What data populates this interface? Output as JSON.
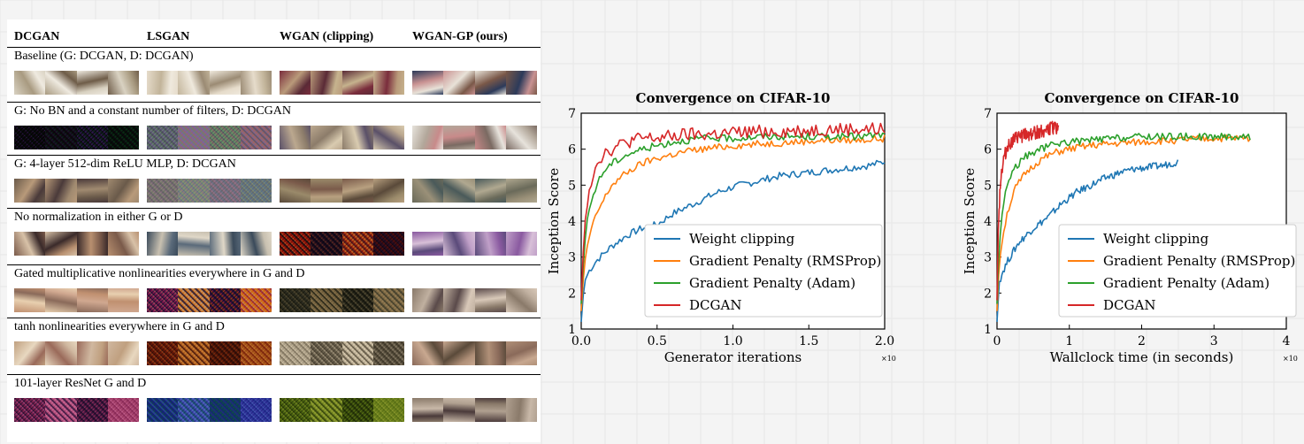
{
  "table": {
    "columns": [
      "DCGAN",
      "LSGAN",
      "WGAN (clipping)",
      "WGAN-GP (ours)"
    ],
    "rows": [
      {
        "label": "Baseline (G: DCGAN, D: DCGAN)",
        "strips": [
          {
            "palette": [
              "#d9d2c2",
              "#a89a80",
              "#efeae0",
              "#6e5c48"
            ],
            "noise": false
          },
          {
            "palette": [
              "#e6dccb",
              "#c2b49a",
              "#efe9dd",
              "#9b8b74"
            ],
            "noise": false
          },
          {
            "palette": [
              "#7a2d3c",
              "#b99a7a",
              "#5a2a36",
              "#c6b38e"
            ],
            "noise": false
          },
          {
            "palette": [
              "#2c3a5a",
              "#c99292",
              "#e8e2d8",
              "#7a5848"
            ],
            "noise": false
          }
        ]
      },
      {
        "label": "G: No BN and a constant number of filters, D: DCGAN",
        "strips": [
          {
            "palette": [
              "#1b2a1e",
              "#3a1e3a",
              "#6b4a8a",
              "#2e6a44"
            ],
            "noise": true
          },
          {
            "palette": [
              "#8a8a9a",
              "#b0a0c8",
              "#a0c0a0",
              "#c8a0a0"
            ],
            "noise": true
          },
          {
            "palette": [
              "#5a5068",
              "#bba88f",
              "#8c7c6a",
              "#d9cbb0"
            ],
            "noise": false
          },
          {
            "palette": [
              "#e7e3dc",
              "#b2a79a",
              "#c88a8a",
              "#7a6a62"
            ],
            "noise": false
          }
        ]
      },
      {
        "label": "G: 4-layer 512-dim ReLU MLP, D: DCGAN",
        "strips": [
          {
            "palette": [
              "#6a5a4a",
              "#b89a7a",
              "#4a3a3a",
              "#a08a70"
            ],
            "noise": false
          },
          {
            "palette": [
              "#a0a0a0",
              "#b8c0a8",
              "#c0a8b8",
              "#98a8b8"
            ],
            "noise": true
          },
          {
            "palette": [
              "#5a4a3a",
              "#9a8a6a",
              "#7a5a4a",
              "#b8a080"
            ],
            "noise": false
          },
          {
            "palette": [
              "#6a6a5a",
              "#9a9078",
              "#4a5a5a",
              "#b0a890"
            ],
            "noise": false
          }
        ]
      },
      {
        "label": "No normalization in either G or D",
        "strips": [
          {
            "palette": [
              "#7a5a4a",
              "#d8c2a8",
              "#3a2a2a",
              "#b89070"
            ],
            "noise": false
          },
          {
            "palette": [
              "#3a4a5a",
              "#c8c0b0",
              "#5a6a7a",
              "#e0d8c8"
            ],
            "noise": false
          },
          {
            "palette": [
              "#b83a2a",
              "#3a2a4a",
              "#d8a060",
              "#6a3a5a"
            ],
            "noise": true
          },
          {
            "palette": [
              "#8a5aa0",
              "#d8c0d8",
              "#5a4a7a",
              "#c0a0c8"
            ],
            "noise": false
          }
        ]
      },
      {
        "label": "Gated multiplicative nonlinearities everywhere in G and D",
        "strips": [
          {
            "palette": [
              "#c09070",
              "#e8d0b0",
              "#8a6a5a",
              "#d0a890"
            ],
            "noise": false
          },
          {
            "palette": [
              "#b04a8a",
              "#e0c0a0",
              "#4a3a6a",
              "#e8a040"
            ],
            "noise": true
          },
          {
            "palette": [
              "#6a6a5a",
              "#a89a7a",
              "#4a4a3a",
              "#c0b090"
            ],
            "noise": true
          },
          {
            "palette": [
              "#8a7a6a",
              "#c0b0a0",
              "#5a4a4a",
              "#d8c8b8"
            ],
            "noise": false
          }
        ]
      },
      {
        "label": "tanh nonlinearities everywhere in G and D",
        "strips": [
          {
            "palette": [
              "#c0a080",
              "#e8d8c0",
              "#9a6a5a",
              "#d0b8a0"
            ],
            "noise": false
          },
          {
            "palette": [
              "#a04a2a",
              "#e0b070",
              "#6a3a2a",
              "#c88a4a"
            ],
            "noise": true
          },
          {
            "palette": [
              "#d0c8b8",
              "#a09888",
              "#e8e0d0",
              "#807868"
            ],
            "noise": true
          },
          {
            "palette": [
              "#8a6a5a",
              "#c8a890",
              "#5a4a3a",
              "#b09078"
            ],
            "noise": false
          }
        ]
      },
      {
        "label": "101-layer ResNet G and D",
        "strips": [
          {
            "palette": [
              "#b05a8a",
              "#e0a0c0",
              "#5a3a6a",
              "#c87aa0"
            ],
            "noise": true
          },
          {
            "palette": [
              "#4a5ab0",
              "#8aa0d8",
              "#3a8a8a",
              "#6a6ac0"
            ],
            "noise": true
          },
          {
            "palette": [
              "#8aa040",
              "#c0c870",
              "#5a6a2a",
              "#a0b050"
            ],
            "noise": true
          },
          {
            "palette": [
              "#8a7a6a",
              "#c8b8a8",
              "#4a3a3a",
              "#b0a090"
            ],
            "noise": false
          }
        ]
      }
    ]
  },
  "chart_data": [
    {
      "type": "line",
      "title": "Convergence on CIFAR-10",
      "xlabel": "Generator iterations",
      "ylabel": "Inception Score",
      "xlim": [
        0,
        2.0
      ],
      "ylim": [
        1,
        7
      ],
      "xticks": [
        "0.0",
        "0.5",
        "1.0",
        "1.5",
        "2.0"
      ],
      "yticks": [
        "1",
        "2",
        "3",
        "4",
        "5",
        "6",
        "7"
      ],
      "x_multiplier_label": "×10",
      "legend_position": "lower-right",
      "series": [
        {
          "name": "Weight clipping",
          "color": "#1f77b4",
          "x": [
            0,
            0.02,
            0.05,
            0.1,
            0.2,
            0.3,
            0.4,
            0.5,
            0.6,
            0.7,
            0.8,
            0.9,
            1.0,
            1.1,
            1.2,
            1.3,
            1.4,
            1.5,
            1.6,
            1.7,
            1.8,
            1.9,
            2.0
          ],
          "y": [
            1.2,
            2.3,
            2.6,
            2.9,
            3.3,
            3.6,
            3.8,
            3.9,
            4.2,
            4.4,
            4.6,
            4.8,
            4.95,
            5.05,
            5.15,
            5.25,
            5.3,
            5.35,
            5.4,
            5.45,
            5.5,
            5.55,
            5.65
          ]
        },
        {
          "name": "Gradient Penalty (RMSProp)",
          "color": "#ff7f0e",
          "x": [
            0,
            0.02,
            0.05,
            0.1,
            0.15,
            0.2,
            0.3,
            0.4,
            0.5,
            0.6,
            0.7,
            0.8,
            1.0,
            1.2,
            1.4,
            1.6,
            1.8,
            2.0
          ],
          "y": [
            1.5,
            2.8,
            3.5,
            4.2,
            4.6,
            5.0,
            5.35,
            5.6,
            5.75,
            5.85,
            5.95,
            6.0,
            6.1,
            6.15,
            6.2,
            6.25,
            6.25,
            6.3
          ]
        },
        {
          "name": "Gradient Penalty (Adam)",
          "color": "#2ca02c",
          "x": [
            0,
            0.02,
            0.05,
            0.1,
            0.15,
            0.2,
            0.3,
            0.4,
            0.5,
            0.6,
            0.7,
            0.8,
            1.0,
            1.2,
            1.4,
            1.6,
            1.8,
            2.0
          ],
          "y": [
            1.7,
            3.3,
            4.3,
            5.0,
            5.4,
            5.6,
            5.85,
            6.0,
            6.1,
            6.2,
            6.25,
            6.3,
            6.3,
            6.35,
            6.35,
            6.35,
            6.35,
            6.4
          ]
        },
        {
          "name": "DCGAN",
          "color": "#d62728",
          "x": [
            0,
            0.02,
            0.05,
            0.1,
            0.15,
            0.2,
            0.3,
            0.4,
            0.5,
            0.6,
            0.7,
            0.8,
            1.0,
            1.2,
            1.4,
            1.6,
            1.8,
            2.0
          ],
          "y": [
            1.8,
            3.8,
            4.9,
            5.6,
            5.9,
            6.0,
            6.2,
            6.3,
            6.3,
            6.35,
            6.4,
            6.4,
            6.45,
            6.5,
            6.5,
            6.55,
            6.55,
            6.55
          ]
        }
      ]
    },
    {
      "type": "line",
      "title": "Convergence on CIFAR-10",
      "xlabel": "Wallclock time (in seconds)",
      "ylabel": "Inception Score",
      "xlim": [
        0,
        4
      ],
      "ylim": [
        1,
        7
      ],
      "xticks": [
        "0",
        "1",
        "2",
        "3",
        "4"
      ],
      "yticks": [
        "1",
        "2",
        "3",
        "4",
        "5",
        "6",
        "7"
      ],
      "x_multiplier_label": "×10",
      "legend_position": "lower-right",
      "series": [
        {
          "name": "Weight clipping",
          "color": "#1f77b4",
          "x": [
            0,
            0.03,
            0.08,
            0.15,
            0.3,
            0.5,
            0.7,
            0.9,
            1.1,
            1.3,
            1.5,
            1.7,
            1.9,
            2.1,
            2.3,
            2.5
          ],
          "y": [
            1.2,
            2.3,
            2.6,
            2.9,
            3.4,
            3.8,
            4.1,
            4.5,
            4.8,
            5.0,
            5.2,
            5.35,
            5.45,
            5.5,
            5.55,
            5.65
          ]
        },
        {
          "name": "Gradient Penalty (RMSProp)",
          "color": "#ff7f0e",
          "x": [
            0,
            0.03,
            0.08,
            0.15,
            0.25,
            0.4,
            0.6,
            0.8,
            1.0,
            1.3,
            1.6,
            2.0,
            2.5,
            3.0,
            3.5
          ],
          "y": [
            1.5,
            2.8,
            3.6,
            4.3,
            4.9,
            5.35,
            5.7,
            5.9,
            6.0,
            6.1,
            6.15,
            6.2,
            6.25,
            6.3,
            6.3
          ]
        },
        {
          "name": "Gradient Penalty (Adam)",
          "color": "#2ca02c",
          "x": [
            0,
            0.03,
            0.08,
            0.15,
            0.25,
            0.4,
            0.6,
            0.8,
            1.0,
            1.3,
            1.6,
            2.0,
            2.5,
            3.0,
            3.5
          ],
          "y": [
            1.7,
            3.3,
            4.4,
            5.1,
            5.5,
            5.8,
            6.0,
            6.15,
            6.2,
            6.25,
            6.3,
            6.35,
            6.35,
            6.35,
            6.35
          ]
        },
        {
          "name": "DCGAN",
          "color": "#d62728",
          "x": [
            0,
            0.02,
            0.05,
            0.1,
            0.15,
            0.2,
            0.3,
            0.4,
            0.5,
            0.6,
            0.7,
            0.8,
            0.85
          ],
          "y": [
            1.8,
            4.0,
            5.2,
            5.8,
            6.1,
            6.2,
            6.35,
            6.4,
            6.45,
            6.5,
            6.55,
            6.6,
            6.6
          ]
        }
      ]
    }
  ]
}
